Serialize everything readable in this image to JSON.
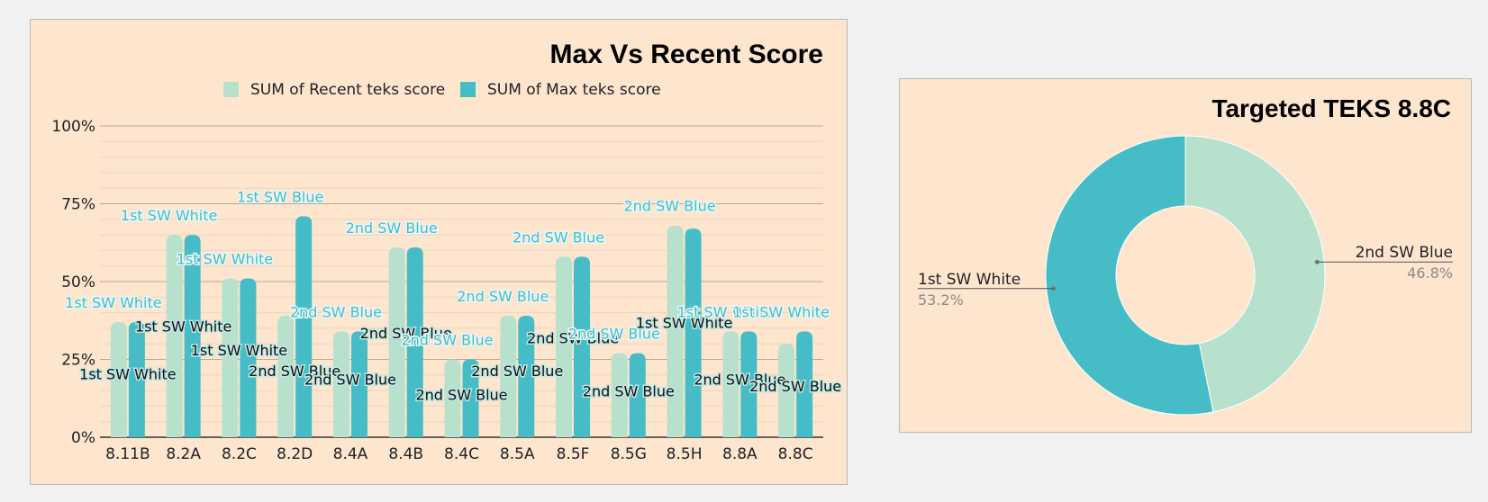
{
  "colors": {
    "recent": "#b7e1cd",
    "max": "#46bdc6",
    "background": "#fde5ce",
    "grid": "#c8b6a4"
  },
  "chart_data": [
    {
      "type": "bar",
      "title": "Max  Vs Recent Score",
      "categories": [
        "8.11B",
        "8.2A",
        "8.2C",
        "8.2D",
        "8.4A",
        "8.4B",
        "8.4C",
        "8.5A",
        "8.5F",
        "8.5G",
        "8.5H",
        "8.8A",
        "8.8C"
      ],
      "series": [
        {
          "name": "SUM of Recent teks score",
          "values": [
            37,
            65,
            51,
            39,
            34,
            61,
            25,
            39,
            58,
            27,
            68,
            34,
            30
          ]
        },
        {
          "name": "SUM of Max teks score",
          "values": [
            37,
            65,
            51,
            71,
            34,
            61,
            25,
            39,
            58,
            27,
            67,
            34,
            34
          ]
        }
      ],
      "ylim": [
        0,
        100
      ],
      "yticks": [
        "0%",
        "25%",
        "50%",
        "75%",
        "100%"
      ],
      "grid": true,
      "legend_position": "top",
      "annotations": {
        "top": [
          "1st SW White",
          "1st SW White",
          "1st SW White",
          "1st SW Blue",
          "2nd SW Blue",
          "2nd SW Blue",
          "2nd SW Blue",
          "2nd SW Blue",
          "2nd SW Blue",
          "2nd SW Blue",
          "2nd SW Blue",
          "1st SW White",
          "1st SW White"
        ],
        "inner": [
          "1st SW White",
          "1st SW White",
          "1st SW White",
          "2nd SW Blue",
          "2nd SW Blue",
          "2nd SW Blue",
          "2nd SW Blue",
          "2nd SW Blue",
          "2nd SW Blue",
          "2nd SW Blue",
          "1st SW White",
          "2nd SW Blue",
          "2nd SW Blue"
        ]
      }
    },
    {
      "type": "pie",
      "title": "Targeted TEKS 8.8C",
      "donut": true,
      "slices": [
        {
          "label": "2nd SW Blue",
          "value": 46.8,
          "percent_label": "46.8%"
        },
        {
          "label": "1st SW White",
          "value": 53.2,
          "percent_label": "53.2%"
        }
      ]
    }
  ]
}
